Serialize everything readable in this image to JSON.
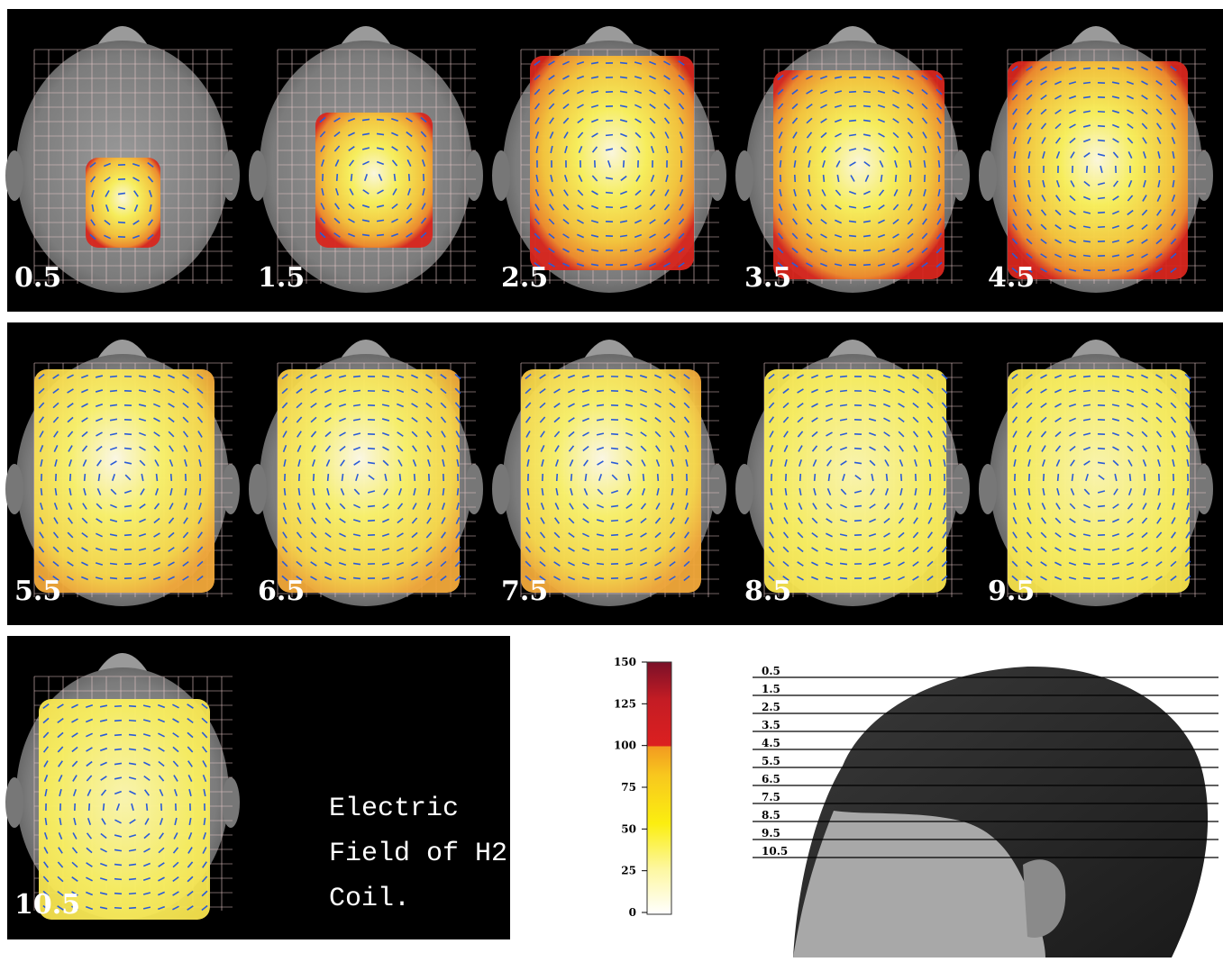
{
  "panels": [
    {
      "label": "0.5"
    },
    {
      "label": "1.5"
    },
    {
      "label": "2.5"
    },
    {
      "label": "3.5"
    },
    {
      "label": "4.5"
    },
    {
      "label": "5.5"
    },
    {
      "label": "6.5"
    },
    {
      "label": "7.5"
    },
    {
      "label": "8.5"
    },
    {
      "label": "9.5"
    },
    {
      "label": "10.5"
    }
  ],
  "caption": {
    "lines": [
      "Electric",
      "Field of H2",
      "Coil."
    ]
  },
  "colorbar": {
    "range": [
      0,
      150
    ],
    "ticks": [
      0,
      25,
      50,
      75,
      100,
      125,
      150
    ]
  },
  "depths": [
    "0.5",
    "1.5",
    "2.5",
    "3.5",
    "4.5",
    "5.5",
    "6.5",
    "7.5",
    "8.5",
    "9.5",
    "10.5"
  ]
}
